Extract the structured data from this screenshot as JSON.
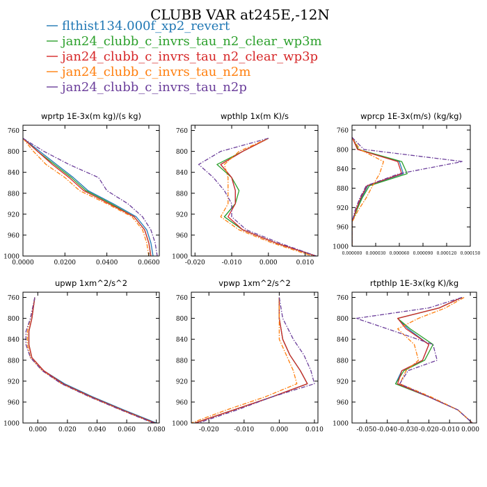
{
  "title": "CLUBB VAR at245E,-12N",
  "legend": [
    {
      "name": "flthist134.000f_xp2_revert",
      "color": "#1f77b4",
      "dash": "solid"
    },
    {
      "name": "jan24_clubb_c_invrs_tau_n2_clear_wp3m",
      "color": "#2ca02c",
      "dash": "solid"
    },
    {
      "name": "jan24_clubb_c_invrs_tau_n2_clear_wp3p",
      "color": "#d62728",
      "dash": "solid"
    },
    {
      "name": "jan24_clubb_c_invrs_tau_n2m",
      "color": "#ff7f0e",
      "dash": "dashdot"
    },
    {
      "name": "jan24_clubb_c_invrs_tau_n2p",
      "color": "#6a3d9a",
      "dash": "dashdot"
    }
  ],
  "chart_data": [
    {
      "type": "line",
      "title": "wprtp  1E-3x(m kg)/(s kg)",
      "xlim": [
        0,
        0.065
      ],
      "ylim": [
        1000,
        750
      ],
      "xticks": [
        0,
        0.02,
        0.04,
        0.06
      ],
      "xtick_labels": [
        "0.0000",
        "0.0200",
        "0.0400",
        "0.0600"
      ],
      "yticks": [
        760,
        800,
        840,
        880,
        920,
        960,
        1000
      ],
      "y": [
        775,
        800,
        825,
        850,
        875,
        900,
        925,
        950,
        975,
        1000
      ],
      "series": [
        {
          "name": "flthist134.000f_xp2_revert",
          "values": [
            0.0,
            0.008,
            0.016,
            0.024,
            0.031,
            0.043,
            0.054,
            0.059,
            0.061,
            0.062
          ]
        },
        {
          "name": "jan24_clubb_c_invrs_tau_n2_clear_wp3m",
          "values": [
            0.0,
            0.007,
            0.015,
            0.023,
            0.03,
            0.042,
            0.053,
            0.058,
            0.06,
            0.061
          ]
        },
        {
          "name": "jan24_clubb_c_invrs_tau_n2_clear_wp3p",
          "values": [
            0.0,
            0.007,
            0.014,
            0.022,
            0.029,
            0.041,
            0.053,
            0.058,
            0.06,
            0.061
          ]
        },
        {
          "name": "jan24_clubb_c_invrs_tau_n2m",
          "values": [
            0.0,
            0.005,
            0.011,
            0.02,
            0.027,
            0.04,
            0.052,
            0.057,
            0.059,
            0.06
          ]
        },
        {
          "name": "jan24_clubb_c_invrs_tau_n2p",
          "values": [
            0.0,
            0.01,
            0.022,
            0.036,
            0.04,
            0.05,
            0.057,
            0.061,
            0.063,
            0.064
          ]
        }
      ]
    },
    {
      "type": "line",
      "title": "wpthlp  1x(m K)/s",
      "xlim": [
        -0.021,
        0.0135
      ],
      "ylim": [
        1000,
        750
      ],
      "xticks": [
        -0.02,
        -0.01,
        0,
        0.01
      ],
      "xtick_labels": [
        "-0.020",
        "-0.010",
        "0.000",
        "0.010"
      ],
      "yticks": [
        760,
        800,
        840,
        880,
        920,
        960,
        1000
      ],
      "y": [
        775,
        800,
        825,
        850,
        875,
        900,
        925,
        950,
        975,
        1000
      ],
      "series": [
        {
          "name": "flthist134.000f_xp2_revert",
          "values": [
            0.0,
            -0.007,
            -0.013,
            -0.01,
            -0.009,
            -0.009,
            -0.012,
            -0.007,
            0.002,
            0.013
          ]
        },
        {
          "name": "jan24_clubb_c_invrs_tau_n2_clear_wp3m",
          "values": [
            0.0,
            -0.007,
            -0.014,
            -0.01,
            -0.008,
            -0.009,
            -0.012,
            -0.007,
            0.002,
            0.013
          ]
        },
        {
          "name": "jan24_clubb_c_invrs_tau_n2_clear_wp3p",
          "values": [
            0.0,
            -0.007,
            -0.013,
            -0.01,
            -0.009,
            -0.009,
            -0.011,
            -0.007,
            0.002,
            0.013
          ]
        },
        {
          "name": "jan24_clubb_c_invrs_tau_n2m",
          "values": [
            0.0,
            -0.008,
            -0.012,
            -0.011,
            -0.011,
            -0.011,
            -0.013,
            -0.008,
            0.001,
            0.012
          ]
        },
        {
          "name": "jan24_clubb_c_invrs_tau_n2p",
          "values": [
            0.0,
            -0.013,
            -0.019,
            -0.015,
            -0.012,
            -0.01,
            -0.01,
            -0.006,
            0.003,
            0.013
          ]
        }
      ]
    },
    {
      "type": "line",
      "title": "wprcp  1E-3x(m/s) (kg/kg)",
      "xlim": [
        0,
        0.00015
      ],
      "ylim": [
        1000,
        750
      ],
      "xticks": [
        0,
        3e-05,
        6e-05,
        9e-05,
        0.00012,
        0.00015
      ],
      "xtick_labels": [
        "0.000000",
        "0.000030",
        "0.000060",
        "0.000090",
        "0.000120",
        "0.000150"
      ],
      "yticks": [
        760,
        800,
        840,
        880,
        920,
        960,
        1000
      ],
      "y": [
        775,
        800,
        825,
        850,
        875,
        900,
        925,
        950,
        975,
        1000
      ],
      "series": [
        {
          "name": "flthist134.000f_xp2_revert",
          "values": [
            0.0,
            8e-06,
            6e-05,
            6.5e-05,
            2e-05,
            1.2e-05,
            6e-06,
            0.0,
            0.0,
            0.0
          ]
        },
        {
          "name": "jan24_clubb_c_invrs_tau_n2_clear_wp3m",
          "values": [
            0.0,
            8e-06,
            6.3e-05,
            7e-05,
            2.2e-05,
            1.3e-05,
            6e-06,
            0.0,
            0.0,
            0.0
          ]
        },
        {
          "name": "jan24_clubb_c_invrs_tau_n2_clear_wp3p",
          "values": [
            0.0,
            7e-06,
            5.8e-05,
            6.3e-05,
            1.9e-05,
            1.1e-05,
            5e-06,
            0.0,
            0.0,
            0.0
          ]
        },
        {
          "name": "jan24_clubb_c_invrs_tau_n2m",
          "values": [
            0.0,
            1e-05,
            4e-05,
            3.5e-05,
            2.6e-05,
            1.8e-05,
            8e-06,
            0.0,
            0.0,
            0.0
          ]
        },
        {
          "name": "jan24_clubb_c_invrs_tau_n2p",
          "values": [
            0.0,
            1.5e-05,
            0.00014,
            6e-05,
            1.8e-05,
            1e-05,
            4e-06,
            0.0,
            0.0,
            0.0
          ]
        }
      ]
    },
    {
      "type": "line",
      "title": "upwp  1xm^2/s^2",
      "xlim": [
        -0.01,
        0.082
      ],
      "ylim": [
        1000,
        750
      ],
      "xticks": [
        0,
        0.02,
        0.04,
        0.06,
        0.08
      ],
      "xtick_labels": [
        "0.000",
        "0.020",
        "0.040",
        "0.060",
        "0.080"
      ],
      "yticks": [
        760,
        800,
        840,
        880,
        920,
        960,
        1000
      ],
      "y": [
        760,
        800,
        825,
        850,
        875,
        900,
        925,
        950,
        975,
        1000
      ],
      "series": [
        {
          "name": "flthist134.000f_xp2_revert",
          "values": [
            -0.002,
            -0.004,
            -0.006,
            -0.006,
            -0.004,
            0.004,
            0.018,
            0.037,
            0.058,
            0.08
          ]
        },
        {
          "name": "jan24_clubb_c_invrs_tau_n2_clear_wp3m",
          "values": [
            -0.002,
            -0.004,
            -0.006,
            -0.006,
            -0.004,
            0.004,
            0.017,
            0.036,
            0.057,
            0.079
          ]
        },
        {
          "name": "jan24_clubb_c_invrs_tau_n2_clear_wp3p",
          "values": [
            -0.002,
            -0.004,
            -0.006,
            -0.006,
            -0.004,
            0.004,
            0.017,
            0.036,
            0.057,
            0.079
          ]
        },
        {
          "name": "jan24_clubb_c_invrs_tau_n2m",
          "values": [
            -0.002,
            -0.005,
            -0.007,
            -0.007,
            -0.005,
            0.003,
            0.016,
            0.035,
            0.056,
            0.078
          ]
        },
        {
          "name": "jan24_clubb_c_invrs_tau_n2p",
          "values": [
            -0.002,
            -0.005,
            -0.008,
            -0.008,
            -0.005,
            0.003,
            0.016,
            0.035,
            0.056,
            0.078
          ]
        }
      ]
    },
    {
      "type": "line",
      "title": "vpwp  1xm^2/s^2",
      "xlim": [
        -0.025,
        0.011
      ],
      "ylim": [
        1000,
        750
      ],
      "xticks": [
        -0.02,
        -0.01,
        0,
        0.01
      ],
      "xtick_labels": [
        "-0.020",
        "-0.010",
        "0.000",
        "0.010"
      ],
      "yticks": [
        760,
        800,
        840,
        880,
        920,
        960,
        1000
      ],
      "y": [
        760,
        800,
        840,
        870,
        900,
        925,
        950,
        975,
        1000
      ],
      "series": [
        {
          "name": "flthist134.000f_xp2_revert",
          "values": [
            0.0,
            0.0,
            0.001,
            0.003,
            0.006,
            0.008,
            -0.002,
            -0.013,
            -0.024
          ]
        },
        {
          "name": "jan24_clubb_c_invrs_tau_n2_clear_wp3m",
          "values": [
            0.0,
            0.0,
            0.001,
            0.003,
            0.006,
            0.008,
            -0.002,
            -0.013,
            -0.024
          ]
        },
        {
          "name": "jan24_clubb_c_invrs_tau_n2_clear_wp3p",
          "values": [
            0.0,
            0.0,
            0.001,
            0.003,
            0.006,
            0.008,
            -0.002,
            -0.013,
            -0.024
          ]
        },
        {
          "name": "jan24_clubb_c_invrs_tau_n2m",
          "values": [
            0.0,
            0.0,
            0.0,
            0.002,
            0.004,
            0.005,
            -0.004,
            -0.015,
            -0.025
          ]
        },
        {
          "name": "jan24_clubb_c_invrs_tau_n2p",
          "values": [
            0.0,
            0.001,
            0.004,
            0.007,
            0.009,
            0.01,
            -0.002,
            -0.012,
            -0.023
          ]
        }
      ]
    },
    {
      "type": "line",
      "title": "rtpthlp  1E-3x(kg K)/kg",
      "xlim": [
        -0.057,
        0.003
      ],
      "ylim": [
        1000,
        750
      ],
      "xticks": [
        -0.05,
        -0.04,
        -0.03,
        -0.02,
        -0.01,
        0
      ],
      "xtick_labels": [
        "-0.050",
        "-0.040",
        "-0.030",
        "-0.020",
        "-0.010",
        "0.000"
      ],
      "yticks": [
        760,
        800,
        840,
        880,
        920,
        960,
        1000
      ],
      "y": [
        760,
        780,
        800,
        820,
        850,
        880,
        900,
        925,
        950,
        975,
        1000
      ],
      "series": [
        {
          "name": "flthist134.000f_xp2_revert",
          "values": [
            -0.004,
            -0.015,
            -0.035,
            -0.03,
            -0.02,
            -0.023,
            -0.033,
            -0.036,
            -0.02,
            -0.006,
            0.001
          ]
        },
        {
          "name": "jan24_clubb_c_invrs_tau_n2_clear_wp3m",
          "values": [
            -0.004,
            -0.015,
            -0.035,
            -0.029,
            -0.018,
            -0.022,
            -0.032,
            -0.036,
            -0.02,
            -0.006,
            0.001
          ]
        },
        {
          "name": "jan24_clubb_c_invrs_tau_n2_clear_wp3p",
          "values": [
            -0.004,
            -0.015,
            -0.035,
            -0.031,
            -0.02,
            -0.023,
            -0.033,
            -0.035,
            -0.02,
            -0.006,
            0.001
          ]
        },
        {
          "name": "jan24_clubb_c_invrs_tau_n2m",
          "values": [
            -0.003,
            -0.012,
            -0.025,
            -0.035,
            -0.027,
            -0.025,
            -0.031,
            -0.034,
            -0.019,
            -0.006,
            0.001
          ]
        },
        {
          "name": "jan24_clubb_c_invrs_tau_n2p",
          "values": [
            -0.004,
            -0.02,
            -0.055,
            -0.04,
            -0.018,
            -0.016,
            -0.03,
            -0.034,
            -0.02,
            -0.006,
            0.001
          ]
        }
      ]
    }
  ]
}
